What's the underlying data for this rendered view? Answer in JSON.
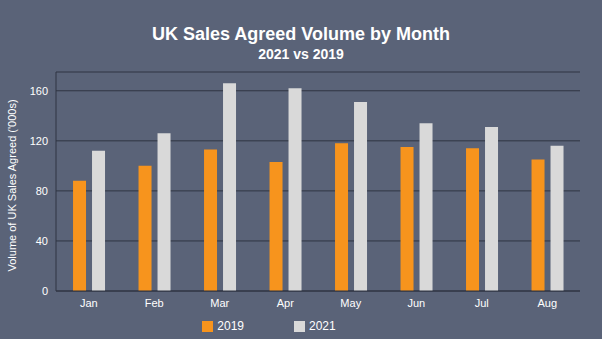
{
  "chart_data": {
    "type": "bar",
    "title": "UK Sales Agreed Volume by Month",
    "subtitle": "2021 vs 2019",
    "y_label": "Volume of UK Sales Agreed ('000s)",
    "categories": [
      "Jan",
      "Feb",
      "Mar",
      "Apr",
      "May",
      "Jun",
      "Jul",
      "Aug"
    ],
    "series": [
      {
        "name": "2019",
        "color": "#f7941d",
        "values": [
          88,
          100,
          113,
          103,
          118,
          115,
          114,
          105
        ]
      },
      {
        "name": "2021",
        "color": "#d9d9d9",
        "values": [
          112,
          126,
          166,
          162,
          151,
          134,
          131,
          116
        ]
      }
    ],
    "ylim": [
      0,
      175
    ],
    "yticks": [
      0,
      40,
      80,
      120,
      160
    ],
    "grid": true,
    "legend": "bottom"
  }
}
